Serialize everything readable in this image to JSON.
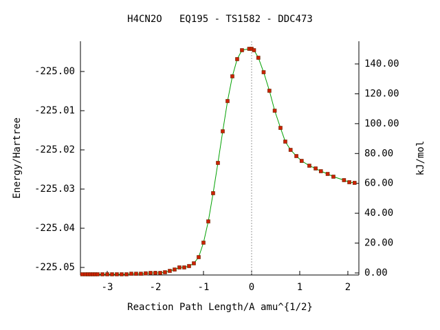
{
  "chart_data": {
    "type": "line",
    "title": "H4CN2O   EQ195 - TS1582 - DDC473",
    "x_label": "Reaction Path Length/A amu^{1/2}",
    "y_label": "Energy/Hartree",
    "y2_label": "kJ/mol",
    "x": [
      -3.52,
      -3.45,
      -3.4,
      -3.35,
      -3.3,
      -3.25,
      -3.2,
      -3.1,
      -3.0,
      -2.9,
      -2.8,
      -2.7,
      -2.6,
      -2.5,
      -2.4,
      -2.3,
      -2.2,
      -2.1,
      -2.0,
      -1.9,
      -1.8,
      -1.7,
      -1.6,
      -1.5,
      -1.4,
      -1.3,
      -1.2,
      -1.1,
      -1.0,
      -0.9,
      -0.8,
      -0.7,
      -0.6,
      -0.5,
      -0.4,
      -0.3,
      -0.2,
      -0.05,
      0,
      0.05,
      0.14,
      0.25,
      0.37,
      0.48,
      0.6,
      0.7,
      0.81,
      0.93,
      1.04,
      1.2,
      1.33,
      1.44,
      1.58,
      1.7,
      1.92,
      2.03,
      2.14
    ],
    "series": [
      {
        "color": "#00a000",
        "marker_color": "#cc2200",
        "values": [
          -225.05175,
          -225.05175,
          -225.05175,
          -225.05175,
          -225.05175,
          -225.05175,
          -225.05175,
          -225.05175,
          -225.05175,
          -225.05175,
          -225.05175,
          -225.05175,
          -225.05175,
          -225.0516,
          -225.0516,
          -225.0516,
          -225.0515,
          -225.0514,
          -225.0514,
          -225.0514,
          -225.05123,
          -225.05088,
          -225.05053,
          -225.05,
          -225.05,
          -225.04965,
          -225.04895,
          -225.04737,
          -225.04368,
          -225.03825,
          -225.03105,
          -225.02333,
          -225.01526,
          -225.00754,
          -225.00123,
          -224.99684,
          -224.99456,
          -224.99421,
          -224.99421,
          -224.99456,
          -224.99649,
          -225.00018,
          -225.00491,
          -225.01,
          -225.01439,
          -225.01789,
          -225.02,
          -225.02158,
          -225.02281,
          -225.02404,
          -225.02474,
          -225.02544,
          -225.02614,
          -225.02684,
          -225.02772,
          -225.02825,
          -225.02842
        ]
      }
    ],
    "xlim": [
      -3.557,
      2.229
    ],
    "xticks": [
      -3,
      -2,
      -1,
      0,
      1,
      2
    ],
    "ylim": [
      -225.05193,
      -224.99228
    ],
    "yticks": [
      {
        "value": -225.0,
        "label": "-225.00"
      },
      -225.01,
      -225.02,
      -225.03,
      -225.04,
      -225.05
    ],
    "y2lim": [
      -1.38,
      155.2
    ],
    "y2ticks": [
      {
        "value": 0,
        "label": "0.00"
      },
      {
        "value": 20,
        "label": "20.00"
      },
      {
        "value": 40,
        "label": "40.00"
      },
      {
        "value": 60,
        "label": "60.00"
      },
      {
        "value": 80,
        "label": "80.00"
      },
      {
        "value": 100,
        "label": "100.00"
      },
      {
        "value": 120,
        "label": "120.00"
      },
      {
        "value": 140,
        "label": "140.00"
      }
    ],
    "reference_line_x": 0
  }
}
